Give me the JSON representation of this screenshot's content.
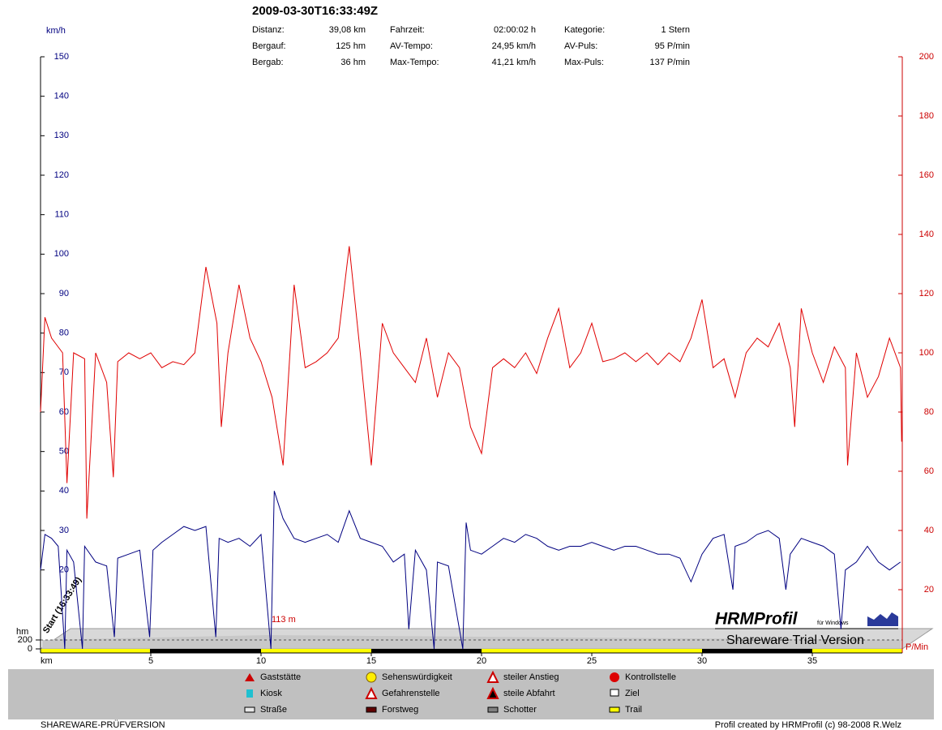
{
  "chart_data": {
    "type": "line",
    "title": "2009-03-30T16:33:49Z",
    "stats": [
      [
        {
          "label": "Distanz:",
          "value": "39,08 km"
        },
        {
          "label": "Fahrzeit:",
          "value": "02:00:02 h"
        },
        {
          "label": "Kategorie:",
          "value": "1 Stern"
        }
      ],
      [
        {
          "label": "Bergauf:",
          "value": "125 hm"
        },
        {
          "label": "AV-Tempo:",
          "value": "24,95 km/h"
        },
        {
          "label": "AV-Puls:",
          "value": "95 P/min"
        }
      ],
      [
        {
          "label": "Bergab:",
          "value": "36 hm"
        },
        {
          "label": "Max-Tempo:",
          "value": "41,21 km/h"
        },
        {
          "label": "Max-Puls:",
          "value": "137 P/min"
        }
      ]
    ],
    "x_label": "km",
    "y_label": "km/h",
    "y2_label": "P/Min",
    "xlim": [
      0,
      39.08
    ],
    "xticks": [
      5,
      10,
      15,
      20,
      25,
      30,
      35
    ],
    "ylim": [
      0,
      150
    ],
    "yticks": [
      20,
      30,
      40,
      50,
      60,
      70,
      80,
      90,
      100,
      110,
      120,
      130,
      140,
      150
    ],
    "y2lim": [
      0,
      200
    ],
    "y2ticks": [
      20,
      40,
      60,
      80,
      100,
      120,
      140,
      160,
      180,
      200
    ],
    "series": [
      {
        "color": "#000080",
        "axis": "y",
        "x": [
          0,
          0.2,
          0.5,
          0.8,
          1.1,
          1.2,
          1.5,
          1.9,
          2,
          2.5,
          3,
          3.35,
          3.5,
          4,
          4.5,
          4.95,
          5.1,
          5.5,
          6,
          6.5,
          7,
          7.5,
          7.95,
          8.1,
          8.5,
          9,
          9.5,
          10,
          10.45,
          10.6,
          11,
          11.5,
          12,
          12.5,
          13,
          13.5,
          14,
          14.5,
          15,
          15.5,
          16,
          16.5,
          16.7,
          17,
          17.5,
          17.85,
          18,
          18.5,
          19.15,
          19.3,
          19.5,
          20,
          20.5,
          21,
          21.5,
          22,
          22.5,
          23,
          23.5,
          24,
          24.5,
          25,
          25.5,
          26,
          26.5,
          27,
          27.5,
          28,
          28.5,
          29,
          29.5,
          30,
          30.5,
          31,
          31.4,
          31.5,
          32,
          32.5,
          33,
          33.5,
          33.8,
          34,
          34.5,
          35,
          35.5,
          36,
          36.3,
          36.5,
          37,
          37.5,
          38,
          38.5,
          39
        ],
        "values": [
          20,
          29,
          28,
          26,
          0,
          25,
          22,
          0,
          26,
          22,
          21,
          3,
          23,
          24,
          25,
          3,
          25,
          27,
          29,
          31,
          30,
          31,
          3,
          28,
          27,
          28,
          26,
          29,
          0,
          40,
          33,
          28,
          27,
          28,
          29,
          27,
          35,
          28,
          27,
          26,
          22,
          24,
          5,
          25,
          20,
          0,
          22,
          21,
          0,
          32,
          25,
          24,
          26,
          28,
          27,
          29,
          28,
          26,
          25,
          26,
          26,
          27,
          26,
          25,
          26,
          26,
          25,
          24,
          24,
          23,
          17,
          24,
          28,
          29,
          15,
          26,
          27,
          29,
          30,
          28,
          15,
          24,
          28,
          27,
          26,
          24,
          5,
          20,
          22,
          26,
          22,
          20,
          22
        ]
      },
      {
        "color": "#e00000",
        "axis": "y2",
        "x": [
          0,
          0.2,
          0.5,
          1,
          1.2,
          1.5,
          2,
          2.1,
          2.5,
          3,
          3.3,
          3.5,
          4,
          4.5,
          5,
          5.5,
          6,
          6.5,
          7,
          7.5,
          8,
          8.2,
          8.5,
          9,
          9.5,
          10,
          10.5,
          11,
          11.5,
          12,
          12.5,
          13,
          13.5,
          14,
          14.5,
          15,
          15.5,
          16,
          16.5,
          17,
          17.5,
          18,
          18.5,
          19,
          19.5,
          20,
          20.5,
          21,
          21.5,
          22,
          22.5,
          23,
          23.5,
          24,
          24.5,
          25,
          25.5,
          26,
          26.5,
          27,
          27.5,
          28,
          28.5,
          29,
          29.5,
          30,
          30.5,
          31,
          31.5,
          32,
          32.5,
          33,
          33.5,
          34,
          34.2,
          34.5,
          35,
          35.5,
          36,
          36.5,
          36.6,
          37,
          37.5,
          38,
          38.5,
          39,
          39.05
        ],
        "values": [
          80,
          112,
          105,
          100,
          56,
          100,
          98,
          44,
          100,
          90,
          58,
          97,
          100,
          98,
          100,
          95,
          97,
          96,
          100,
          129,
          110,
          75,
          100,
          123,
          105,
          97,
          85,
          62,
          123,
          95,
          97,
          100,
          105,
          136,
          100,
          62,
          110,
          100,
          95,
          90,
          105,
          85,
          100,
          95,
          75,
          66,
          95,
          98,
          95,
          100,
          93,
          105,
          115,
          95,
          100,
          110,
          97,
          98,
          100,
          97,
          100,
          96,
          100,
          97,
          105,
          118,
          95,
          98,
          85,
          100,
          105,
          102,
          110,
          95,
          75,
          115,
          100,
          90,
          102,
          95,
          62,
          100,
          85,
          92,
          105,
          95,
          70
        ]
      }
    ],
    "elevation": {
      "label": "hm",
      "ylim": [
        0,
        200
      ],
      "ticks": [
        0,
        200
      ],
      "annotation": "113 m"
    },
    "start_label": "Start (16:33:49)",
    "legend_items": [
      "Gaststätte",
      "Sehenswürdigkeit",
      "steiler Anstieg",
      "Kontrollstelle",
      "Kiosk",
      "Gefahrenstelle",
      "steile Abfahrt",
      "Ziel",
      "Straße",
      "Forstweg",
      "Schotter",
      "Trail"
    ],
    "watermark": {
      "title": "HRMProfil",
      "subtitle": "für Windows",
      "note": "Shareware Trial  Version"
    },
    "footer_left": "SHAREWARE-PRÜFVERSION",
    "footer_right": "Profil created by HRMProfil (c) 98-2008 R.Welz"
  }
}
